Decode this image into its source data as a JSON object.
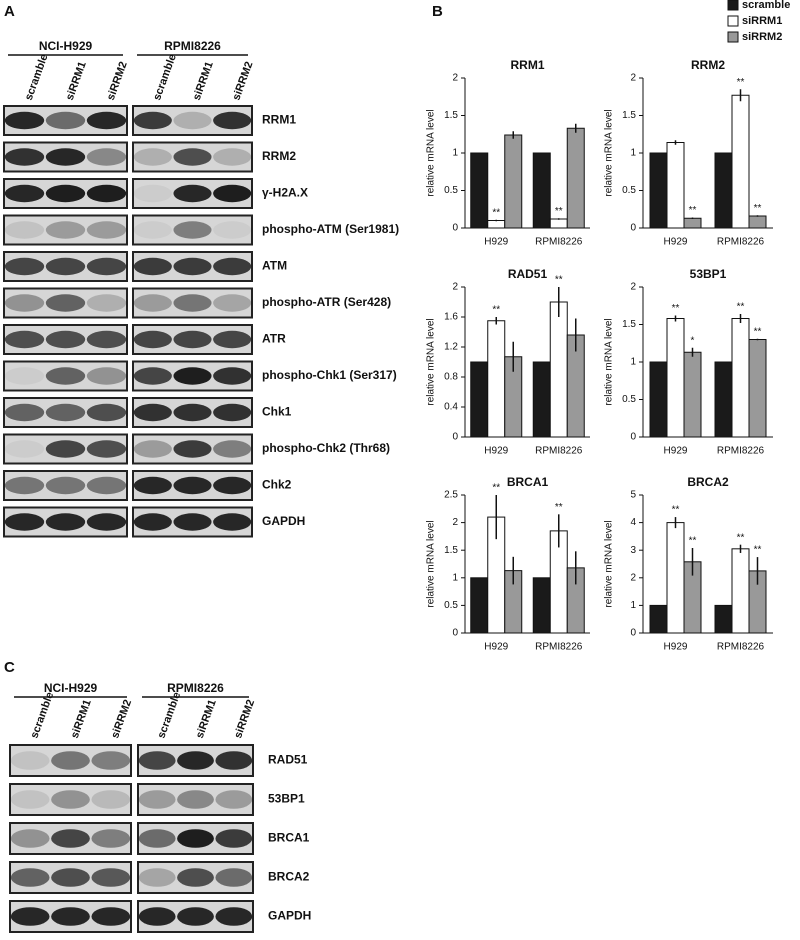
{
  "panel_a": {
    "label": "A",
    "groups": [
      "NCI-H929",
      "RPMI8226"
    ],
    "lanes": [
      "scramble",
      "siRRM1",
      "siRRM2"
    ],
    "rows": [
      "RRM1",
      "RRM2",
      "γ-H2A.X",
      "phospho-ATM (Ser1981)",
      "ATM",
      "phospho-ATR (Ser428)",
      "ATR",
      "phospho-Chk1 (Ser317)",
      "Chk1",
      "phospho-Chk2 (Thr68)",
      "Chk2",
      "GAPDH"
    ]
  },
  "panel_b": {
    "label": "B"
  },
  "legend": {
    "entries": [
      {
        "name": "scramble",
        "color": "#1a1a1a"
      },
      {
        "name": "siRRM1",
        "color": "#ffffff"
      },
      {
        "name": "siRRM2",
        "color": "#999999"
      }
    ]
  },
  "chart_data": [
    {
      "type": "bar",
      "title": "RRM1",
      "ylabel": "relative mRNA level",
      "categories": [
        "H929",
        "RPMI8226"
      ],
      "ylim": [
        0,
        2
      ],
      "yticks": [
        0,
        0.5,
        1,
        1.5,
        2
      ],
      "series": [
        {
          "values": [
            1,
            1
          ]
        },
        {
          "values": [
            0.1,
            0.12
          ],
          "errors": [
            0.01,
            0.01
          ],
          "annotations": [
            "**",
            "**"
          ]
        },
        {
          "values": [
            1.24,
            1.33
          ],
          "errors": [
            0.05,
            0.06
          ]
        }
      ]
    },
    {
      "type": "bar",
      "title": "RRM2",
      "ylabel": "relative mRNA level",
      "categories": [
        "H929",
        "RPMI8226"
      ],
      "ylim": [
        0,
        2
      ],
      "yticks": [
        0,
        0.5,
        1,
        1.5,
        2
      ],
      "series": [
        {
          "values": [
            1,
            1
          ]
        },
        {
          "values": [
            1.14,
            1.77
          ],
          "errors": [
            0.03,
            0.08
          ],
          "annotations": [
            null,
            "**"
          ]
        },
        {
          "values": [
            0.13,
            0.16
          ],
          "errors": [
            0.01,
            0.01
          ],
          "annotations": [
            "**",
            "**"
          ]
        }
      ]
    },
    {
      "type": "bar",
      "title": "RAD51",
      "ylabel": "relative mRNA level",
      "categories": [
        "H929",
        "RPMI8226"
      ],
      "ylim": [
        0,
        2
      ],
      "yticks": [
        0,
        0.4,
        0.8,
        1.2,
        1.6,
        2
      ],
      "series": [
        {
          "values": [
            1,
            1
          ]
        },
        {
          "values": [
            1.55,
            1.8
          ],
          "errors": [
            0.05,
            0.2
          ],
          "annotations": [
            "**",
            "**"
          ]
        },
        {
          "values": [
            1.07,
            1.36
          ],
          "errors": [
            0.2,
            0.22
          ]
        }
      ]
    },
    {
      "type": "bar",
      "title": "53BP1",
      "ylabel": "relative mRNA level",
      "categories": [
        "H929",
        "RPMI8226"
      ],
      "ylim": [
        0,
        2
      ],
      "yticks": [
        0,
        0.5,
        1,
        1.5,
        2
      ],
      "series": [
        {
          "values": [
            1,
            1
          ]
        },
        {
          "values": [
            1.58,
            1.58
          ],
          "errors": [
            0.04,
            0.06
          ],
          "annotations": [
            "**",
            "**"
          ]
        },
        {
          "values": [
            1.13,
            1.3
          ],
          "errors": [
            0.06,
            0.01
          ],
          "annotations": [
            "*",
            "**"
          ]
        }
      ]
    },
    {
      "type": "bar",
      "title": "BRCA1",
      "ylabel": "relative mRNA level",
      "categories": [
        "H929",
        "RPMI8226"
      ],
      "ylim": [
        0,
        2.5
      ],
      "yticks": [
        0,
        0.5,
        1,
        1.5,
        2,
        2.5
      ],
      "series": [
        {
          "values": [
            1,
            1
          ]
        },
        {
          "values": [
            2.1,
            1.85
          ],
          "errors": [
            0.4,
            0.3
          ],
          "annotations": [
            "**",
            "**"
          ]
        },
        {
          "values": [
            1.13,
            1.18
          ],
          "errors": [
            0.25,
            0.3
          ]
        }
      ]
    },
    {
      "type": "bar",
      "title": "BRCA2",
      "ylabel": "relative mRNA level",
      "categories": [
        "H929",
        "RPMI8226"
      ],
      "ylim": [
        0,
        5
      ],
      "yticks": [
        0,
        1,
        2,
        3,
        4,
        5
      ],
      "series": [
        {
          "values": [
            1,
            1
          ]
        },
        {
          "values": [
            4,
            3.05
          ],
          "errors": [
            0.2,
            0.15
          ],
          "annotations": [
            "**",
            "**"
          ]
        },
        {
          "values": [
            2.58,
            2.25
          ],
          "errors": [
            0.5,
            0.5
          ],
          "annotations": [
            "**",
            "**"
          ]
        }
      ]
    }
  ],
  "panel_c": {
    "label": "C",
    "groups": [
      "NCI-H929",
      "RPMI8226"
    ],
    "lanes": [
      "scramble",
      "siRRM1",
      "siRRM2"
    ],
    "rows": [
      "RAD51",
      "53BP1",
      "BRCA1",
      "BRCA2",
      "GAPDH"
    ]
  }
}
